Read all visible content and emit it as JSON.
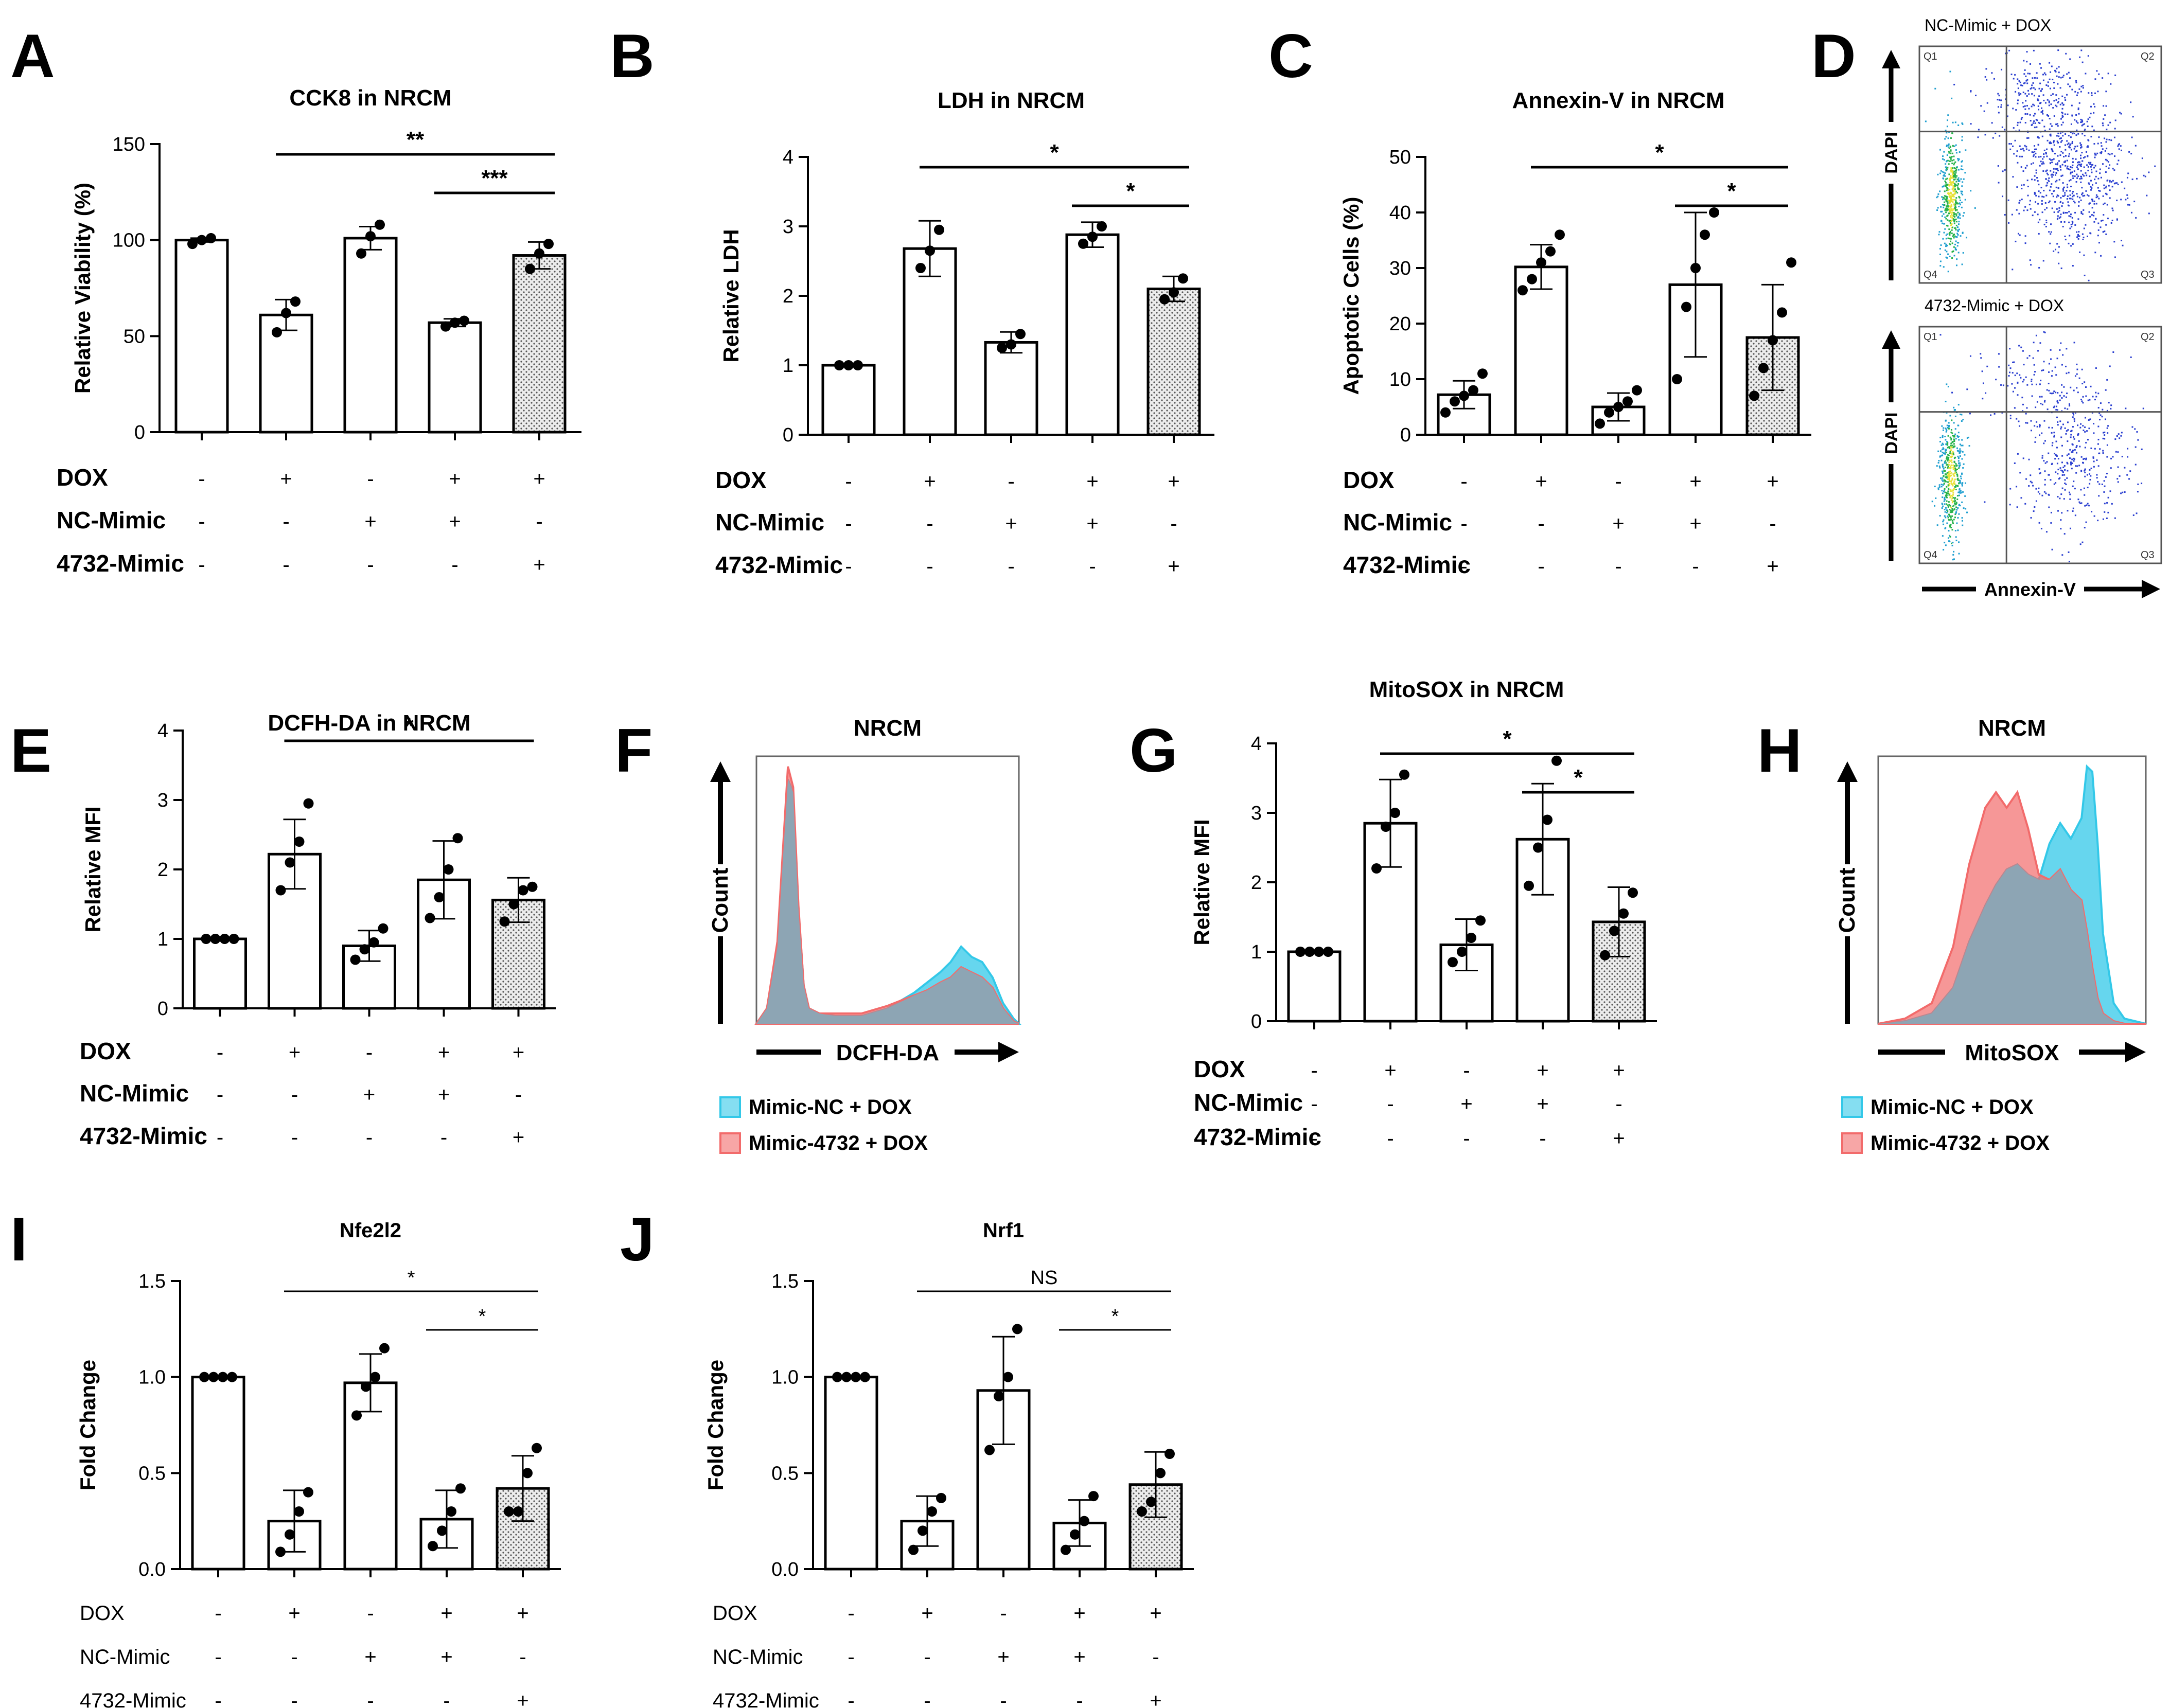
{
  "colors": {
    "axis": "#000000",
    "bar_fill": "#ffffff",
    "dotted_fill": "#d9d9d9",
    "cyan": "#33c8e8",
    "red": "#f26b6b",
    "overlap": "#8aa6b6",
    "scatter_blue": "#2a3fd0",
    "scatter_green": "#27b24a",
    "scatter_yellow": "#e8e23a"
  },
  "conditions": {
    "rows": [
      "DOX",
      "NC-Mimic",
      "4732-Mimic"
    ],
    "dox": [
      "-",
      "+",
      "-",
      "+",
      "+"
    ],
    "nc": [
      "-",
      "-",
      "+",
      "+",
      "-"
    ],
    "mimic4732": [
      "-",
      "-",
      "-",
      "-",
      "+"
    ]
  },
  "chart_data": [
    {
      "id": "A",
      "type": "bar",
      "letter": "A",
      "title": "CCK8 in NRCM",
      "ylabel": "Relative Viability (%)",
      "ylim": [
        0,
        150
      ],
      "yticks": [
        "0",
        "50",
        "100",
        "150"
      ],
      "values": [
        100,
        61,
        101,
        57,
        92
      ],
      "errors": [
        1,
        8,
        6,
        2,
        7
      ],
      "points": [
        [
          98,
          100,
          101
        ],
        [
          52,
          62,
          68
        ],
        [
          93,
          102,
          108
        ],
        [
          55,
          57,
          58
        ],
        [
          85,
          93,
          98
        ]
      ],
      "sig": [
        {
          "from": 1,
          "to": 4,
          "label": "**"
        },
        {
          "from": 3,
          "to": 4,
          "label": "***"
        }
      ]
    },
    {
      "id": "B",
      "type": "bar",
      "letter": "B",
      "title": "LDH in NRCM",
      "ylabel": "Relative LDH",
      "ylim": [
        0,
        4
      ],
      "yticks": [
        "0",
        "1",
        "2",
        "3",
        "4"
      ],
      "values": [
        1.0,
        2.68,
        1.33,
        2.88,
        2.1
      ],
      "errors": [
        0.02,
        0.4,
        0.15,
        0.18,
        0.18
      ],
      "points": [
        [
          1.0,
          1.0,
          1.0
        ],
        [
          2.4,
          2.65,
          2.95
        ],
        [
          1.25,
          1.3,
          1.45
        ],
        [
          2.75,
          2.85,
          3.0
        ],
        [
          1.95,
          2.05,
          2.25
        ]
      ],
      "sig": [
        {
          "from": 1,
          "to": 4,
          "label": "*"
        },
        {
          "from": 3,
          "to": 4,
          "label": "*"
        }
      ]
    },
    {
      "id": "C",
      "type": "bar",
      "letter": "C",
      "title": "Annexin-V in NRCM",
      "ylabel": "Apoptotic Cells (%)",
      "ylim": [
        0,
        50
      ],
      "yticks": [
        "0",
        "10",
        "20",
        "30",
        "40",
        "50"
      ],
      "values": [
        7.2,
        30.2,
        5.0,
        27.0,
        17.5
      ],
      "errors": [
        2.5,
        4,
        2.5,
        13,
        9.5
      ],
      "points": [
        [
          4,
          6,
          7,
          8,
          11
        ],
        [
          26,
          28,
          31,
          33,
          36
        ],
        [
          2,
          4,
          5,
          6,
          8
        ],
        [
          10,
          23,
          30,
          36,
          40
        ],
        [
          7,
          12,
          17,
          22,
          31
        ]
      ],
      "sig": [
        {
          "from": 1,
          "to": 4,
          "label": "*"
        },
        {
          "from": 3,
          "to": 4,
          "label": "*"
        }
      ]
    },
    {
      "id": "E",
      "type": "bar",
      "letter": "E",
      "title": "DCFH-DA in NRCM",
      "ylabel": "Relative MFI",
      "ylim": [
        0,
        4
      ],
      "yticks": [
        "0",
        "1",
        "2",
        "3",
        "4"
      ],
      "values": [
        1.0,
        2.22,
        0.9,
        1.85,
        1.56
      ],
      "errors": [
        0.02,
        0.5,
        0.22,
        0.56,
        0.32
      ],
      "points": [
        [
          1.0,
          1.0,
          1.0,
          1.0
        ],
        [
          1.7,
          2.1,
          2.4,
          2.95
        ],
        [
          0.7,
          0.85,
          0.95,
          1.15
        ],
        [
          1.3,
          1.6,
          2.0,
          2.45
        ],
        [
          1.25,
          1.5,
          1.7,
          1.75
        ]
      ],
      "sig": [
        {
          "from": 1,
          "to": 4,
          "label": "*"
        }
      ]
    },
    {
      "id": "G",
      "type": "bar",
      "letter": "G",
      "title": "MitoSOX in NRCM",
      "ylabel": "Relative MFI",
      "ylim": [
        0,
        4
      ],
      "yticks": [
        "0",
        "1",
        "2",
        "3",
        "4"
      ],
      "values": [
        1.0,
        2.85,
        1.1,
        2.62,
        1.43
      ],
      "errors": [
        0.02,
        0.63,
        0.37,
        0.8,
        0.5
      ],
      "points": [
        [
          1.0,
          1.0,
          1.0,
          1.0
        ],
        [
          2.2,
          2.8,
          3.0,
          3.55
        ],
        [
          0.85,
          1.0,
          1.2,
          1.45
        ],
        [
          1.95,
          2.5,
          2.9,
          3.75
        ],
        [
          0.95,
          1.3,
          1.55,
          1.85
        ]
      ],
      "sig": [
        {
          "from": 1,
          "to": 4,
          "label": "*"
        },
        {
          "from": 3,
          "to": 4,
          "label": "*"
        }
      ]
    },
    {
      "id": "I",
      "type": "bar",
      "letter": "I",
      "title": "Nfe2l2",
      "ylabel": "Fold Change",
      "ylim": [
        0,
        1.5
      ],
      "yticks": [
        "0.0",
        "0.5",
        "1.0",
        "1.5"
      ],
      "values": [
        1.0,
        0.25,
        0.97,
        0.26,
        0.42
      ],
      "errors": [
        0.0,
        0.16,
        0.15,
        0.15,
        0.17
      ],
      "points": [
        [
          1.0,
          1.0,
          1.0,
          1.0
        ],
        [
          0.09,
          0.18,
          0.3,
          0.4
        ],
        [
          0.8,
          0.95,
          1.0,
          1.15
        ],
        [
          0.12,
          0.2,
          0.3,
          0.42
        ],
        [
          0.3,
          0.3,
          0.5,
          0.63
        ]
      ],
      "sig": [
        {
          "from": 1,
          "to": 4,
          "label": "*"
        },
        {
          "from": 3,
          "to": 4,
          "label": "*"
        }
      ]
    },
    {
      "id": "J",
      "type": "bar",
      "letter": "J",
      "title": "Nrf1",
      "ylabel": "Fold Change",
      "ylim": [
        0,
        1.5
      ],
      "yticks": [
        "0.0",
        "0.5",
        "1.0",
        "1.5"
      ],
      "values": [
        1.0,
        0.25,
        0.93,
        0.24,
        0.44
      ],
      "errors": [
        0.0,
        0.13,
        0.28,
        0.12,
        0.17
      ],
      "points": [
        [
          1.0,
          1.0,
          1.0,
          1.0
        ],
        [
          0.1,
          0.2,
          0.3,
          0.37
        ],
        [
          0.62,
          0.9,
          1.0,
          1.25
        ],
        [
          0.1,
          0.18,
          0.25,
          0.38
        ],
        [
          0.3,
          0.35,
          0.5,
          0.6
        ]
      ],
      "sig": [
        {
          "from": 1,
          "to": 4,
          "label": "NS"
        },
        {
          "from": 3,
          "to": 4,
          "label": "*"
        }
      ]
    },
    {
      "id": "F",
      "type": "area",
      "letter": "F",
      "title": "NRCM",
      "xlabel": "DCFH-DA",
      "ylabel": "Count",
      "x": [
        0,
        4,
        8,
        12,
        14,
        16,
        18,
        20,
        24,
        30,
        40,
        50,
        60,
        65,
        70,
        74,
        78,
        82,
        86,
        90,
        94,
        98,
        100
      ],
      "series": [
        {
          "name": "Mimic-NC + DOX",
          "values": [
            0,
            6,
            30,
            95,
            90,
            45,
            15,
            6,
            4,
            3,
            3,
            6,
            12,
            16,
            20,
            24,
            30,
            26,
            24,
            18,
            8,
            2,
            0
          ]
        },
        {
          "name": "Mimic-4732 + DOX",
          "values": [
            0,
            6,
            32,
            100,
            92,
            46,
            15,
            6,
            4,
            4,
            4,
            7,
            11,
            13,
            16,
            18,
            22,
            20,
            18,
            14,
            6,
            1,
            0
          ]
        }
      ],
      "legend": [
        "Mimic-NC + DOX",
        "Mimic-4732 + DOX"
      ]
    },
    {
      "id": "H",
      "type": "area",
      "letter": "H",
      "title": "NRCM",
      "xlabel": "MitoSOX",
      "ylabel": "Count",
      "x": [
        0,
        10,
        20,
        28,
        34,
        40,
        44,
        48,
        52,
        56,
        60,
        64,
        68,
        72,
        76,
        78,
        80,
        82,
        84,
        88,
        92,
        100
      ],
      "series": [
        {
          "name": "Mimic-NC + DOX",
          "values": [
            0,
            1,
            4,
            14,
            32,
            46,
            54,
            60,
            62,
            58,
            56,
            70,
            78,
            72,
            80,
            100,
            98,
            70,
            35,
            8,
            2,
            0
          ]
        },
        {
          "name": "Mimic-4732 + DOX",
          "values": [
            0,
            2,
            8,
            30,
            62,
            84,
            90,
            84,
            90,
            76,
            58,
            56,
            60,
            52,
            48,
            36,
            22,
            10,
            4,
            1,
            0,
            0
          ]
        }
      ],
      "legend": [
        "Mimic-NC + DOX",
        "Mimic-4732 + DOX"
      ]
    },
    {
      "id": "D",
      "type": "scatter",
      "letter": "D",
      "plots": [
        {
          "title": "NC-Mimic + DOX",
          "quadrants": [
            "Q1",
            "Q2",
            "Q4",
            "Q3"
          ]
        },
        {
          "title": "4732-Mimic + DOX",
          "quadrants": [
            "Q1",
            "Q2",
            "Q4",
            "Q3"
          ]
        }
      ],
      "xlabel": "Annexin-V",
      "ylabel": "DAPI"
    }
  ]
}
